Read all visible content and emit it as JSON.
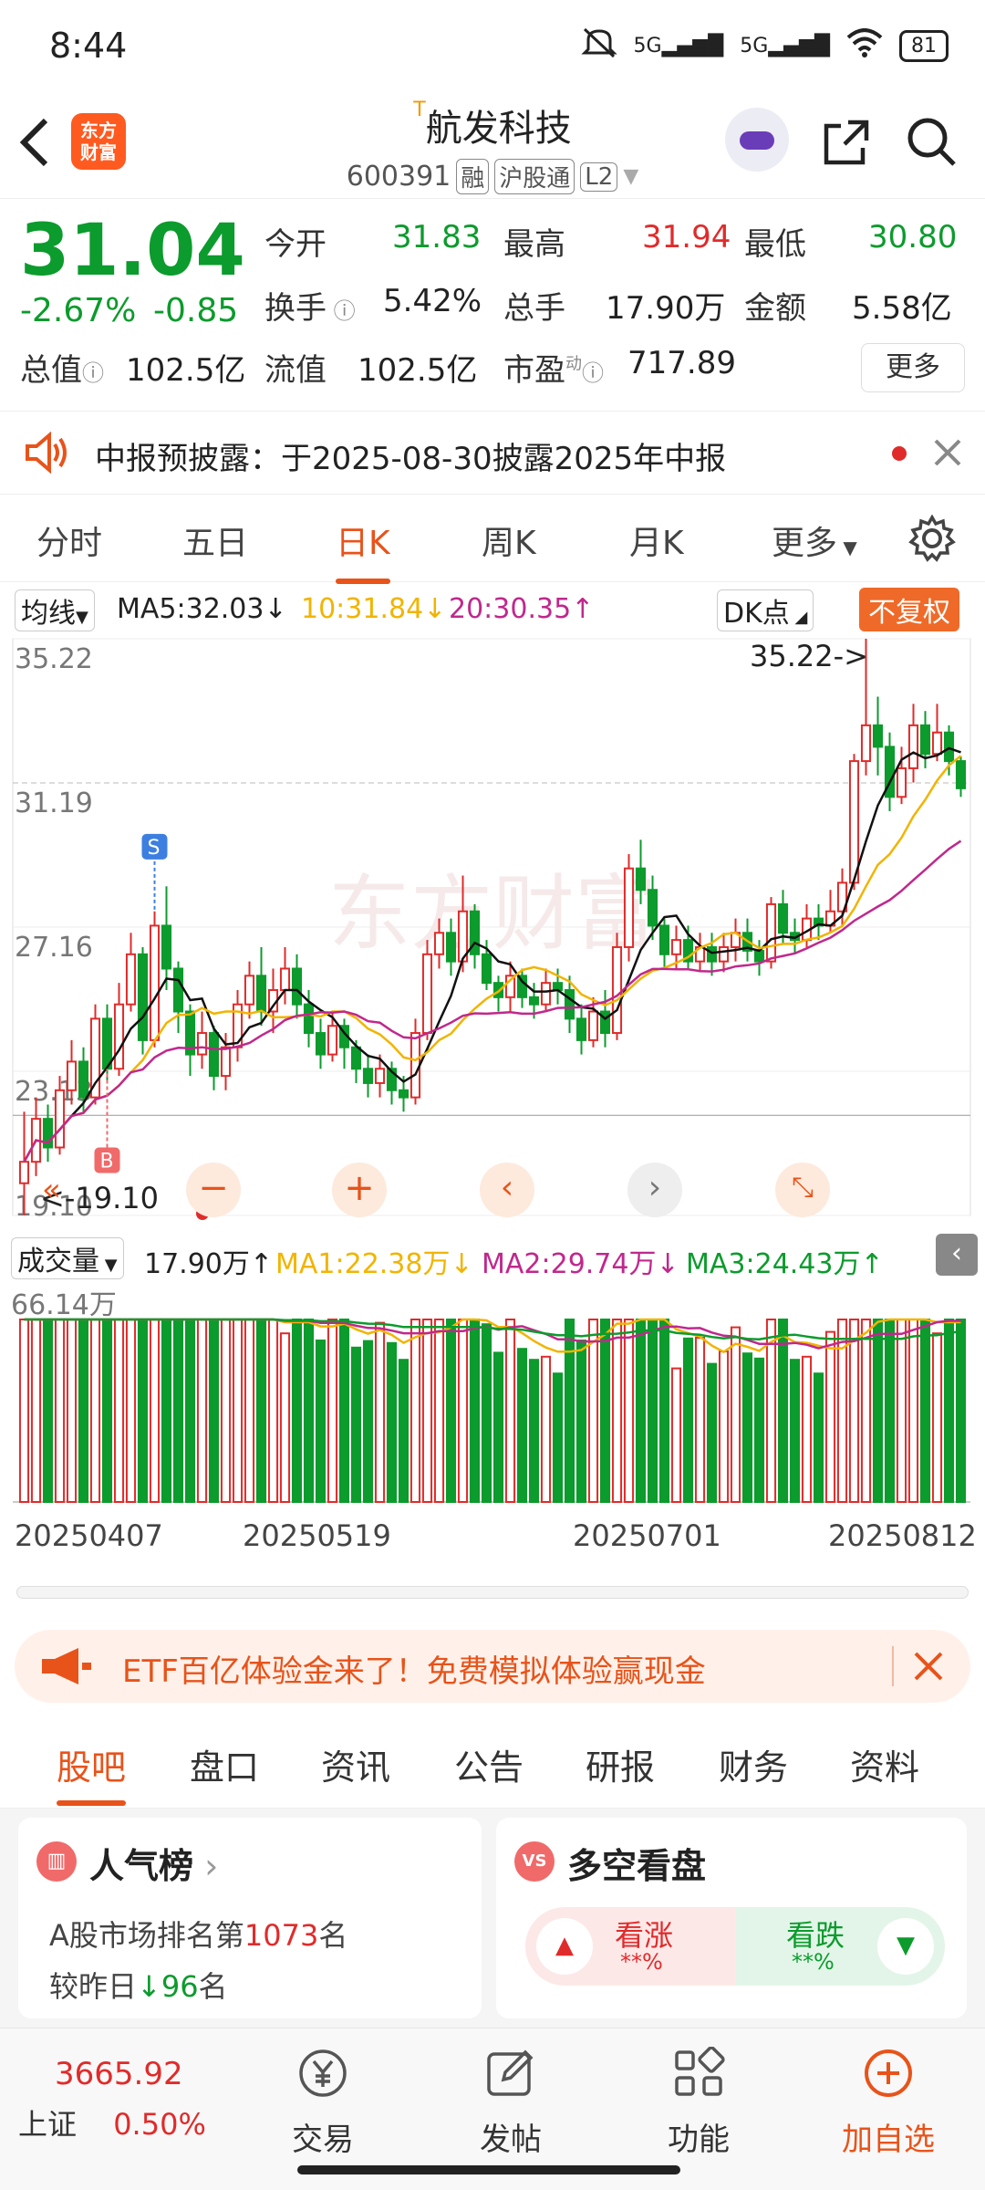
{
  "status_bar": {
    "time": "8:44",
    "net1": "5G",
    "net2": "5G",
    "battery": "81"
  },
  "header": {
    "logo_text": "东方财富",
    "stock_name": "航发科技",
    "t_mark": "T",
    "code": "600391",
    "tags": [
      "融",
      "沪股通",
      "L2"
    ]
  },
  "quote": {
    "price": "31.04",
    "change_pct": "-2.67%",
    "change": "-0.85",
    "open_label": "今开",
    "open": "31.83",
    "high_label": "最高",
    "high": "31.94",
    "low_label": "最低",
    "low": "30.80",
    "turnover_label": "换手",
    "turnover": "5.42%",
    "volume_label": "总手",
    "volume": "17.90万",
    "amount_label": "金额",
    "amount": "5.58亿",
    "mcap_label": "总值",
    "mcap": "102.5亿",
    "float_label": "流值",
    "float": "102.5亿",
    "pe_label": "市盈",
    "pe_sup": "动",
    "pe": "717.89",
    "more_label": "更多"
  },
  "notice": {
    "text": "中报预披露：于2025-08-30披露2025年中报"
  },
  "period_tabs": [
    "分时",
    "五日",
    "日K",
    "周K",
    "月K",
    "更多"
  ],
  "ma_row": {
    "selector": "均线",
    "ma5": "MA5:32.03↓",
    "ma10": "10:31.84↓",
    "ma20": "20:30.35↑",
    "dk": "DK点",
    "adjust": "不复权"
  },
  "kchart_labels": {
    "y_ticks": [
      "35.22",
      "31.19",
      "27.16",
      "23.13",
      "19.10"
    ],
    "max_note": "35.22->",
    "min_note": "<-19.10",
    "marker_s": "S",
    "marker_b": "B"
  },
  "vol_row": {
    "selector": "成交量",
    "vol": "17.90万↑",
    "ma1": "MA1:22.38万↓",
    "ma2": "MA2:29.74万↓",
    "ma3": "MA3:24.43万↑"
  },
  "vchart_labels": {
    "y_max": "66.14万",
    "dates": [
      "20250407",
      "20250519",
      "20250701",
      "20250812"
    ]
  },
  "banner": {
    "text": "ETF百亿体验金来了！免费模拟体验赢现金"
  },
  "bottom_tabs": [
    "股吧",
    "盘口",
    "资讯",
    "公告",
    "研报",
    "财务",
    "资料"
  ],
  "card_popularity": {
    "title": "人气榜",
    "rank_prefix": "A股市场排名第",
    "rank": "1073",
    "rank_suffix": "名",
    "vs_prefix": "较昨日",
    "vs_value": "96",
    "vs_suffix": "名"
  },
  "card_sentiment": {
    "title": "多空看盘",
    "bull_label": "看涨",
    "bull_val": "**%",
    "bear_label": "看跌",
    "bear_val": "**%"
  },
  "bottom_nav": {
    "index_value": "3665.92",
    "index_name": "上证",
    "index_change": "0.50%",
    "items": [
      "交易",
      "发帖",
      "功能",
      "加自选"
    ]
  },
  "colors": {
    "up": "#e02b2b",
    "down": "#0c9b2d",
    "accent": "#e8531a",
    "ma5": "#111111",
    "ma10": "#f1b400",
    "ma20": "#c0288d"
  },
  "chart_data": {
    "type": "candlestick",
    "dates_shown": [
      "20250407",
      "20250519",
      "20250701",
      "20250812"
    ],
    "ylim": [
      19.1,
      35.22
    ],
    "candles": [
      [
        20.0,
        20.6,
        19.1,
        22.0
      ],
      [
        20.6,
        21.8,
        20.2,
        22.4
      ],
      [
        21.8,
        21.0,
        20.6,
        22.2
      ],
      [
        21.0,
        22.6,
        20.8,
        23.0
      ],
      [
        22.6,
        23.4,
        22.2,
        24.0
      ],
      [
        23.4,
        22.4,
        22.0,
        23.8
      ],
      [
        22.4,
        24.6,
        22.2,
        25.0
      ],
      [
        24.6,
        23.2,
        22.8,
        25.0
      ],
      [
        23.2,
        25.0,
        23.0,
        25.6
      ],
      [
        25.0,
        26.4,
        24.8,
        27.0
      ],
      [
        26.4,
        24.0,
        23.6,
        26.6
      ],
      [
        24.0,
        27.2,
        23.8,
        27.6
      ],
      [
        27.2,
        26.0,
        25.4,
        28.3
      ],
      [
        26.0,
        24.8,
        24.2,
        26.2
      ],
      [
        24.8,
        23.6,
        23.0,
        25.0
      ],
      [
        23.6,
        24.2,
        23.2,
        24.8
      ],
      [
        24.2,
        23.0,
        22.6,
        24.4
      ],
      [
        23.0,
        23.8,
        22.6,
        24.2
      ],
      [
        23.8,
        25.0,
        23.4,
        25.4
      ],
      [
        25.0,
        25.8,
        24.6,
        26.2
      ],
      [
        25.8,
        24.8,
        24.4,
        26.6
      ],
      [
        24.8,
        25.4,
        24.2,
        26.0
      ],
      [
        25.4,
        26.0,
        25.0,
        26.6
      ],
      [
        26.0,
        25.0,
        24.6,
        26.4
      ],
      [
        25.0,
        24.2,
        23.8,
        25.4
      ],
      [
        24.2,
        23.6,
        23.2,
        24.6
      ],
      [
        23.6,
        24.4,
        23.4,
        24.8
      ],
      [
        24.4,
        23.8,
        23.2,
        24.6
      ],
      [
        23.8,
        23.2,
        22.8,
        24.0
      ],
      [
        23.2,
        22.8,
        22.4,
        23.6
      ],
      [
        22.8,
        23.2,
        22.4,
        23.6
      ],
      [
        23.2,
        22.6,
        22.2,
        23.4
      ],
      [
        22.6,
        22.4,
        22.0,
        23.0
      ],
      [
        22.4,
        24.2,
        22.2,
        24.6
      ],
      [
        24.2,
        26.4,
        24.0,
        26.8
      ],
      [
        26.4,
        27.0,
        26.0,
        27.4
      ],
      [
        27.0,
        26.2,
        25.8,
        27.4
      ],
      [
        26.2,
        27.6,
        25.9,
        28.6
      ],
      [
        27.6,
        26.4,
        26.0,
        27.8
      ],
      [
        26.4,
        25.6,
        25.4,
        26.8
      ],
      [
        25.6,
        25.2,
        24.8,
        25.8
      ],
      [
        25.2,
        25.8,
        24.8,
        26.2
      ],
      [
        25.8,
        25.2,
        24.9,
        26.0
      ],
      [
        25.2,
        25.0,
        24.6,
        25.6
      ],
      [
        25.0,
        25.6,
        24.8,
        26.0
      ],
      [
        25.6,
        25.4,
        25.0,
        26.0
      ],
      [
        25.4,
        24.6,
        24.2,
        25.8
      ],
      [
        24.6,
        24.0,
        23.6,
        25.0
      ],
      [
        24.0,
        24.8,
        23.8,
        25.2
      ],
      [
        24.8,
        24.2,
        23.8,
        25.4
      ],
      [
        24.2,
        26.6,
        24.0,
        27.0
      ],
      [
        26.6,
        28.8,
        26.2,
        29.2
      ],
      [
        28.8,
        28.2,
        27.8,
        29.6
      ],
      [
        28.2,
        27.2,
        26.8,
        28.6
      ],
      [
        27.2,
        26.4,
        26.0,
        27.4
      ],
      [
        26.4,
        26.8,
        26.0,
        27.2
      ],
      [
        26.8,
        26.2,
        26.0,
        27.2
      ],
      [
        26.2,
        26.6,
        25.9,
        27.0
      ],
      [
        26.6,
        26.2,
        25.8,
        27.0
      ],
      [
        26.2,
        26.6,
        25.9,
        27.0
      ],
      [
        26.6,
        27.0,
        26.2,
        27.4
      ],
      [
        27.0,
        26.5,
        26.2,
        27.4
      ],
      [
        26.5,
        26.2,
        25.8,
        26.8
      ],
      [
        26.2,
        27.8,
        26.0,
        28.0
      ],
      [
        27.8,
        27.0,
        26.7,
        28.2
      ],
      [
        27.0,
        26.8,
        26.4,
        27.4
      ],
      [
        26.8,
        27.4,
        26.6,
        27.8
      ],
      [
        27.4,
        27.2,
        26.8,
        27.8
      ],
      [
        27.2,
        27.6,
        27.0,
        28.2
      ],
      [
        27.6,
        28.4,
        27.2,
        28.8
      ],
      [
        28.4,
        31.8,
        28.2,
        32.0
      ],
      [
        31.8,
        32.8,
        31.4,
        35.22
      ],
      [
        32.8,
        32.2,
        31.4,
        33.6
      ],
      [
        32.2,
        30.8,
        30.4,
        32.6
      ],
      [
        30.8,
        31.6,
        30.6,
        32.2
      ],
      [
        31.6,
        32.8,
        31.2,
        33.4
      ],
      [
        32.8,
        32.0,
        31.6,
        33.2
      ],
      [
        32.0,
        32.6,
        31.8,
        33.4
      ],
      [
        32.6,
        31.8,
        31.4,
        32.8
      ],
      [
        31.8,
        31.04,
        30.8,
        31.94
      ]
    ],
    "volume_max": "66.14万",
    "series": [
      {
        "name": "MA5",
        "value_latest": "32.03"
      },
      {
        "name": "MA10",
        "value_latest": "31.84"
      },
      {
        "name": "MA20",
        "value_latest": "30.35"
      }
    ]
  }
}
